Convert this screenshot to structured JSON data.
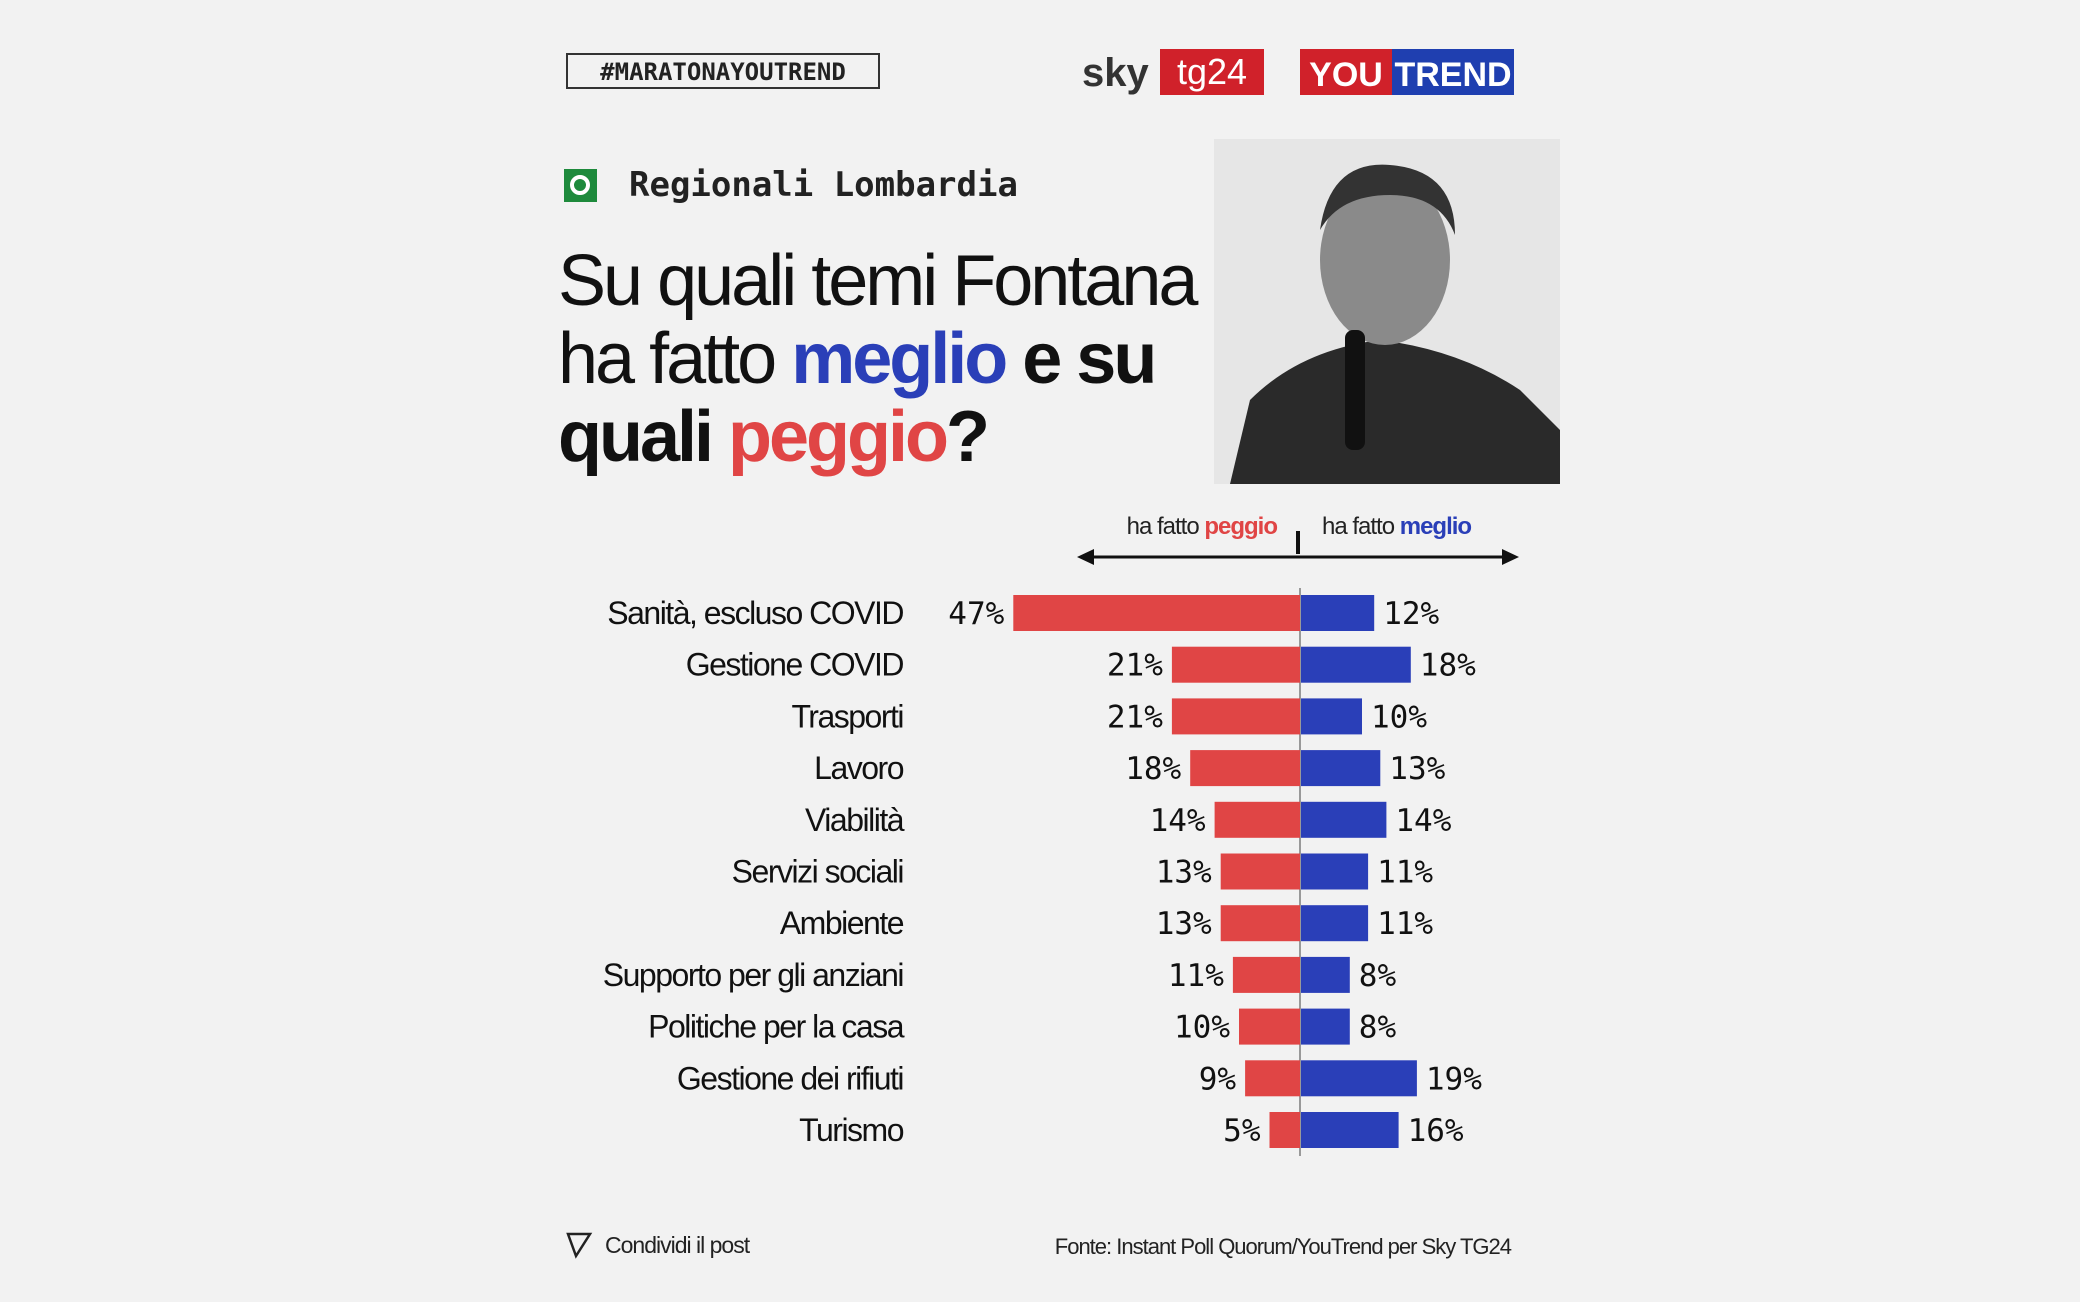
{
  "header": {
    "hashtag": "#MARATONAYOUTREND",
    "logo_sky": "sky",
    "logo_tg": "tg24",
    "logo_you": "YOU",
    "logo_trend": "TREND"
  },
  "section": "Regionali Lombardia",
  "title": [
    "Su quali temi Fontana",
    "ha fatto",
    "meglio",
    "e su",
    "quali",
    "peggio",
    "?"
  ],
  "chart_data": {
    "type": "diverging-bar",
    "legend_prefix": "ha fatto",
    "categories": [
      "Sanità, escluso COVID",
      "Gestione COVID",
      "Trasporti",
      "Lavoro",
      "Viabilità",
      "Servizi sociali",
      "Ambiente",
      "Supporto per gli anziani",
      "Politiche per la casa",
      "Gestione dei rifiuti",
      "Turismo"
    ],
    "series": [
      {
        "name": "peggio",
        "color": "#e04545",
        "side": "left",
        "values": [
          47,
          21,
          21,
          18,
          14,
          13,
          13,
          11,
          10,
          9,
          5
        ],
        "value_labels": [
          "47%",
          "21%",
          "21%",
          "18%",
          "14%",
          "13%",
          "13%",
          "11%",
          "10%",
          "9%",
          "5%"
        ]
      },
      {
        "name": "meglio",
        "color": "#2a3fb8",
        "side": "right",
        "values": [
          12,
          18,
          10,
          13,
          14,
          11,
          11,
          8,
          8,
          19,
          16
        ],
        "value_labels": [
          "12%",
          "18%",
          "10%",
          "13%",
          "14%",
          "11%",
          "11%",
          "8%",
          "8%",
          "19%",
          "16%"
        ]
      }
    ]
  },
  "footer": {
    "share": "Condividi il post",
    "source": "Fonte: Instant Poll Quorum/YouTrend per Sky TG24"
  }
}
